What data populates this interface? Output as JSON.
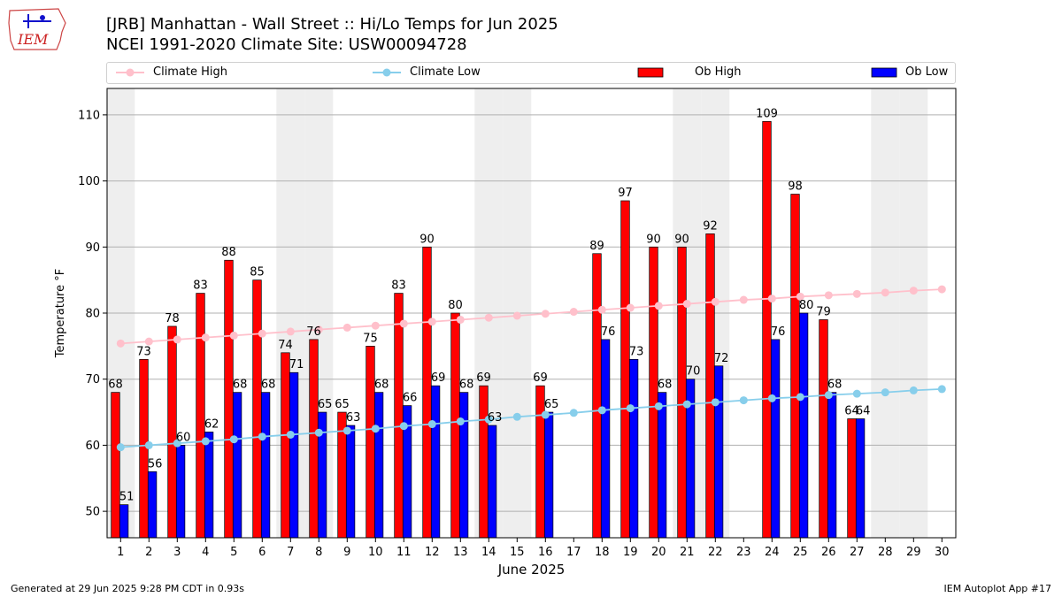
{
  "header": {
    "title_line1": "[JRB] Manhattan - Wall Street :: Hi/Lo Temps for Jun 2025",
    "title_line2": "NCEI 1991-2020 Climate Site: USW00094728",
    "logo_text": "IEM"
  },
  "footer": {
    "left": "Generated at 29 Jun 2025 9:28 PM CDT in 0.93s",
    "right": "IEM Autoplot App #17"
  },
  "colors": {
    "ob_high": "#ff0000",
    "ob_low": "#0000ff",
    "climate_high": "#ffc0cb",
    "climate_low": "#87ceeb",
    "weekend_shade": "#eeeeee",
    "grid": "#b0b0b0"
  },
  "chart_data": {
    "type": "bar",
    "xlabel": "June 2025",
    "ylabel": "Temperature °F",
    "ylim": [
      46,
      114
    ],
    "yticks": [
      50,
      60,
      70,
      80,
      90,
      100,
      110
    ],
    "grid": "horizontal",
    "legend_position": "top",
    "categories": [
      "1",
      "2",
      "3",
      "4",
      "5",
      "6",
      "7",
      "8",
      "9",
      "10",
      "11",
      "12",
      "13",
      "14",
      "15",
      "16",
      "17",
      "18",
      "19",
      "20",
      "21",
      "22",
      "23",
      "24",
      "25",
      "26",
      "27",
      "28",
      "29",
      "30"
    ],
    "shaded_days": [
      1,
      7,
      8,
      14,
      15,
      21,
      22,
      28,
      29
    ],
    "series": [
      {
        "name": "Ob High",
        "kind": "bar",
        "values": [
          68,
          73,
          78,
          83,
          88,
          85,
          74,
          76,
          65,
          75,
          83,
          90,
          80,
          69,
          null,
          69,
          null,
          89,
          97,
          90,
          90,
          92,
          null,
          109,
          98,
          79,
          64,
          null,
          null,
          null
        ]
      },
      {
        "name": "Ob Low",
        "kind": "bar",
        "values": [
          51,
          56,
          60,
          62,
          68,
          68,
          71,
          65,
          63,
          68,
          66,
          69,
          68,
          63,
          null,
          65,
          null,
          76,
          73,
          68,
          70,
          72,
          null,
          76,
          80,
          68,
          64,
          null,
          null,
          null
        ]
      },
      {
        "name": "Climate High",
        "kind": "line",
        "values": [
          75.4,
          75.7,
          76.0,
          76.3,
          76.6,
          76.9,
          77.2,
          77.5,
          77.8,
          78.1,
          78.4,
          78.7,
          79.0,
          79.3,
          79.6,
          79.9,
          80.2,
          80.5,
          80.8,
          81.1,
          81.4,
          81.7,
          82.0,
          82.2,
          82.5,
          82.7,
          82.9,
          83.1,
          83.4,
          83.6
        ]
      },
      {
        "name": "Climate Low",
        "kind": "line",
        "values": [
          59.7,
          60.0,
          60.3,
          60.6,
          60.9,
          61.3,
          61.6,
          61.9,
          62.2,
          62.5,
          62.9,
          63.2,
          63.6,
          63.9,
          64.3,
          64.6,
          64.9,
          65.3,
          65.6,
          65.9,
          66.2,
          66.5,
          66.8,
          67.1,
          67.3,
          67.6,
          67.8,
          68.0,
          68.3,
          68.5
        ]
      }
    ]
  }
}
